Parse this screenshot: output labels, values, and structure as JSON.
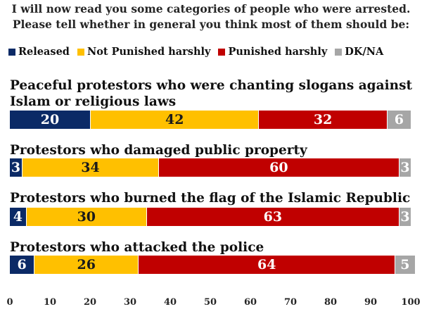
{
  "title_line1": "I will now read you some categories of people who were arrested.",
  "title_line2": "Please tell whether in general you think most of them should be:",
  "chart_data": {
    "type": "bar",
    "orientation": "horizontal",
    "stacked": true,
    "title": "I will now read you some categories of people who were arrested. Please tell whether in general you think most of them should be:",
    "categories": [
      "Peaceful protestors who were chanting slogans against Islam or religious laws",
      "Protestors who damaged public property",
      "Protestors who burned the flag of the Islamic Republic",
      "Protestors who attacked the police"
    ],
    "series": [
      {
        "name": "Released",
        "color": "#0b2a66",
        "values": [
          20,
          3,
          4,
          6
        ]
      },
      {
        "name": "Not Punished harshly",
        "color": "#ffc000",
        "values": [
          42,
          34,
          30,
          26
        ]
      },
      {
        "name": "Punished harshly",
        "color": "#c00000",
        "values": [
          32,
          60,
          63,
          64
        ]
      },
      {
        "name": "DK/NA",
        "color": "#a6a6a6",
        "values": [
          6,
          3,
          3,
          5
        ]
      }
    ],
    "xlim": [
      0,
      100
    ],
    "xticks": [
      "0",
      "10",
      "20",
      "30",
      "40",
      "50",
      "60",
      "70",
      "80",
      "90",
      "100"
    ],
    "legend_position": "top",
    "grid": false
  }
}
